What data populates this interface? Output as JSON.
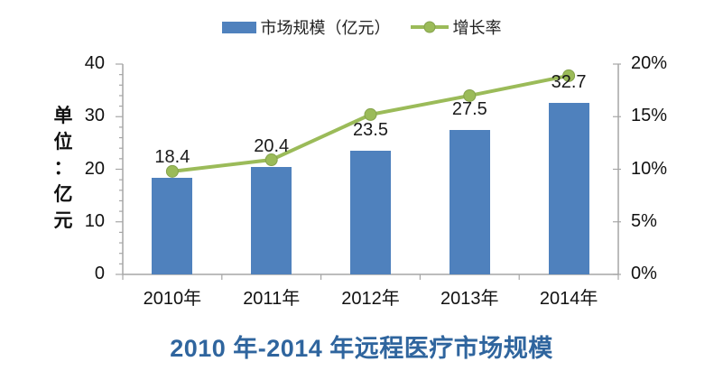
{
  "colors": {
    "bar": "#4F81BD",
    "line": "#9BBB59",
    "marker_border": "#84A24B",
    "axis": "#A6A6A6",
    "title": "#2F659E"
  },
  "legend": {
    "items": [
      {
        "label": "市场规模（亿元）",
        "swatch": "bar"
      },
      {
        "label": "增长率",
        "swatch": "line-marker"
      }
    ]
  },
  "chart_data": {
    "type": "bar",
    "subtype": "bar+line combo, dual axis",
    "title": "2010 年-2014 年远程医疗市场规模",
    "categories": [
      "2010年",
      "2011年",
      "2012年",
      "2013年",
      "2014年"
    ],
    "series": [
      {
        "name": "市场规模（亿元）",
        "type": "bar",
        "axis": "left",
        "values": [
          18.4,
          20.4,
          23.5,
          27.5,
          32.7
        ],
        "data_labels": [
          "18.4",
          "20.4",
          "23.5",
          "27.5",
          "32.7"
        ],
        "color": "#4F81BD"
      },
      {
        "name": "增长率",
        "type": "line",
        "axis": "right",
        "values_percent": [
          9.8,
          10.9,
          15.2,
          17.0,
          18.9
        ],
        "color": "#9BBB59"
      }
    ],
    "left_axis": {
      "title": "单位：亿元",
      "min": 0,
      "max": 40,
      "tick_values": [
        0,
        10,
        20,
        30,
        40
      ],
      "tick_labels": [
        "0",
        "10",
        "20",
        "30",
        "40"
      ],
      "minor_tick_step": 2
    },
    "right_axis": {
      "min": 0,
      "max": 20,
      "tick_values": [
        0,
        5,
        10,
        15,
        20
      ],
      "tick_labels": [
        "0%",
        "5%",
        "10%",
        "15%",
        "20%"
      ]
    },
    "grid": "off",
    "legend_position": "top"
  }
}
